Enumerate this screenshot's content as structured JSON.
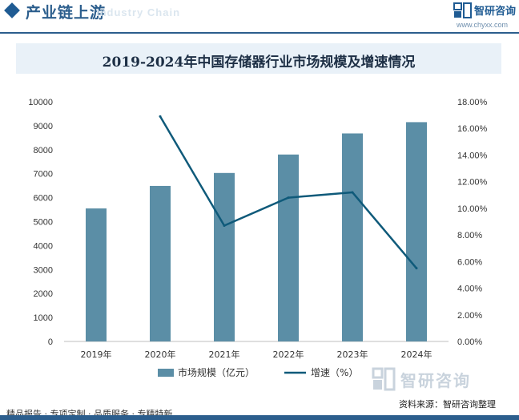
{
  "header": {
    "title": "产业链上游",
    "subtitle": "Industry Chain",
    "brand_name": "智研咨询",
    "brand_url": "www.chyxx.com"
  },
  "chart_data": {
    "type": "bar",
    "title": "2019-2024年中国存储器行业市场规模及增速情况",
    "categories": [
      "2019年",
      "2020年",
      "2021年",
      "2022年",
      "2023年",
      "2024年"
    ],
    "series": [
      {
        "name": "市场规模（亿元）",
        "type": "bar",
        "axis": "left",
        "color": "#5b8ea6",
        "values": [
          5550,
          6490,
          7030,
          7800,
          8680,
          9150
        ]
      },
      {
        "name": "增速（%）",
        "type": "line",
        "axis": "right",
        "color": "#0f5a7a",
        "values": [
          null,
          16.9,
          8.7,
          10.8,
          11.2,
          5.5
        ]
      }
    ],
    "y_left": {
      "min": 0,
      "max": 10000,
      "step": 1000,
      "ticks": [
        "0",
        "1000",
        "2000",
        "3000",
        "4000",
        "5000",
        "6000",
        "7000",
        "8000",
        "9000",
        "10000"
      ]
    },
    "y_right": {
      "min": 0,
      "max": 18,
      "step": 2,
      "ticks": [
        "0.00%",
        "2.00%",
        "4.00%",
        "6.00%",
        "8.00%",
        "10.00%",
        "12.00%",
        "14.00%",
        "16.00%",
        "18.00%"
      ]
    },
    "legend": "bottom",
    "grid": false
  },
  "footer": {
    "left": "精品报告 · 专项定制 · 品质服务 · 专精特新",
    "brand": "智研咨询",
    "source": "资料来源：智研咨询整理"
  }
}
